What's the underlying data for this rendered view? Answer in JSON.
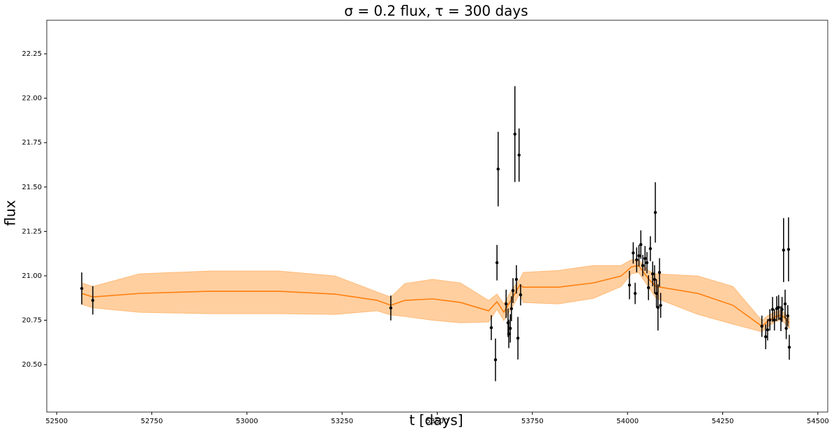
{
  "chart_data": {
    "type": "scatter",
    "title": "σ = 0.2 flux, τ = 300 days",
    "xlabel": "t [days]",
    "ylabel": "flux",
    "xlim": [
      52474,
      54526
    ],
    "ylim": [
      20.233,
      22.439
    ],
    "xticks": [
      52500,
      52750,
      53000,
      53250,
      53500,
      53750,
      54000,
      54250,
      54500
    ],
    "yticks": [
      {
        "value": 20.5,
        "label": "20.50"
      },
      {
        "value": 20.75,
        "label": "20.75"
      },
      {
        "value": 21.0,
        "label": "21.00"
      },
      {
        "value": 21.25,
        "label": "21.25"
      },
      {
        "value": 21.5,
        "label": "21.50"
      },
      {
        "value": 21.75,
        "label": "21.75"
      },
      {
        "value": 22.0,
        "label": "22.00"
      },
      {
        "value": 22.25,
        "label": "22.25"
      }
    ],
    "points": {
      "color": "#000000",
      "x": [
        52566,
        52595,
        53378,
        53642,
        53653,
        53657,
        53660,
        53681,
        53686,
        53688,
        53692,
        53695,
        53699,
        53704,
        53708,
        53712,
        53715,
        53719,
        54005,
        54015,
        54020,
        54024,
        54030,
        54035,
        54040,
        54046,
        54051,
        54055,
        54060,
        54066,
        54071,
        54073,
        54076,
        54080,
        54084,
        54087,
        54353,
        54363,
        54368,
        54374,
        54381,
        54386,
        54392,
        54397,
        54403,
        54406,
        54410,
        54414,
        54417,
        54421,
        54423,
        54425
      ],
      "values": [
        20.929,
        20.862,
        20.819,
        20.708,
        20.527,
        21.074,
        21.601,
        20.842,
        20.736,
        20.673,
        20.704,
        20.815,
        20.917,
        21.798,
        20.98,
        20.649,
        21.68,
        20.893,
        20.948,
        21.129,
        20.901,
        21.09,
        21.113,
        21.176,
        21.058,
        21.098,
        21.074,
        20.933,
        21.153,
        21.011,
        20.98,
        21.357,
        20.901,
        20.822,
        21.019,
        20.834,
        20.716,
        20.657,
        20.696,
        20.752,
        20.811,
        20.752,
        20.815,
        20.822,
        20.759,
        20.811,
        21.145,
        20.842,
        20.704,
        20.775,
        21.149,
        20.598
      ],
      "errors": [
        0.09,
        0.08,
        0.07,
        0.07,
        0.12,
        0.1,
        0.21,
        0.08,
        0.08,
        0.08,
        0.08,
        0.07,
        0.07,
        0.27,
        0.08,
        0.12,
        0.15,
        0.06,
        0.08,
        0.06,
        0.06,
        0.07,
        0.06,
        0.08,
        0.06,
        0.07,
        0.06,
        0.07,
        0.07,
        0.07,
        0.08,
        0.17,
        0.08,
        0.13,
        0.08,
        0.07,
        0.06,
        0.07,
        0.06,
        0.06,
        0.07,
        0.06,
        0.07,
        0.07,
        0.07,
        0.07,
        0.18,
        0.08,
        0.06,
        0.06,
        0.18,
        0.07
      ]
    },
    "model": {
      "color": "#ff7f0e",
      "band_color": "#ffbb78",
      "x": [
        52566,
        52595,
        52718,
        52901,
        53085,
        53232,
        53342,
        53378,
        53415,
        53488,
        53561,
        53635,
        53657,
        53675,
        53699,
        53717,
        53726,
        53818,
        53910,
        53983,
        54010,
        54029,
        54056,
        54075,
        54185,
        54277,
        54353,
        54368,
        54390,
        54405,
        54425
      ],
      "values": [
        20.901,
        20.881,
        20.901,
        20.913,
        20.913,
        20.897,
        20.862,
        20.834,
        20.862,
        20.87,
        20.85,
        20.803,
        20.854,
        20.795,
        20.881,
        20.948,
        20.936,
        20.936,
        20.96,
        20.999,
        21.05,
        21.058,
        20.98,
        20.94,
        20.901,
        20.834,
        20.716,
        20.744,
        20.771,
        20.779,
        20.736
      ],
      "lower": [
        20.84,
        20.82,
        20.795,
        20.787,
        20.787,
        20.783,
        20.803,
        20.78,
        20.771,
        20.75,
        20.736,
        20.74,
        20.811,
        20.748,
        20.83,
        20.901,
        20.85,
        20.842,
        20.873,
        20.94,
        21.011,
        21.019,
        20.933,
        20.874,
        20.783,
        20.728,
        20.685,
        20.713,
        20.744,
        20.752,
        20.705
      ],
      "upper": [
        20.96,
        20.94,
        21.011,
        21.027,
        21.027,
        20.999,
        20.909,
        20.88,
        20.956,
        20.98,
        20.96,
        20.861,
        20.897,
        20.842,
        20.932,
        20.98,
        21.019,
        21.03,
        21.058,
        21.058,
        21.09,
        21.09,
        21.027,
        21.011,
        20.999,
        20.94,
        20.748,
        20.775,
        20.799,
        20.803,
        20.767
      ]
    }
  }
}
